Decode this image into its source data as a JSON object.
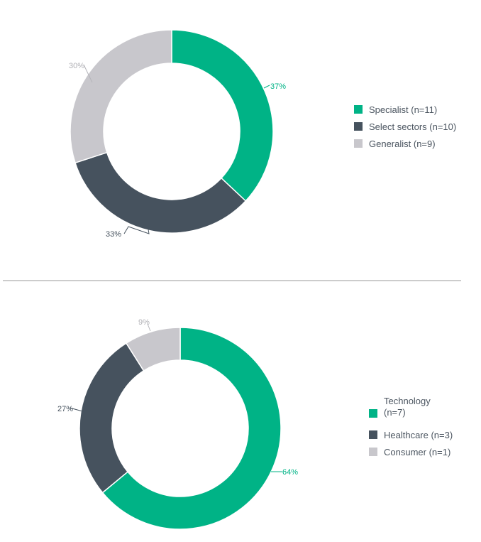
{
  "colors": {
    "specialist": "#00b386",
    "select": "#46525e",
    "generalist": "#c8c7cc",
    "divider": "#9a9a9a"
  },
  "chart_data": [
    {
      "type": "pie",
      "title": "",
      "labels": [
        "Specialist (n=11)",
        "Select sectors (n=10)",
        "Generalist (n=9)"
      ],
      "values": [
        37,
        33,
        30
      ],
      "value_labels": [
        "37%",
        "33%",
        "30%"
      ],
      "counts": [
        11,
        10,
        9
      ],
      "colors": [
        "#00b386",
        "#46525e",
        "#c8c7cc"
      ],
      "donut": true,
      "legend_position": "right"
    },
    {
      "type": "pie",
      "title": "",
      "labels": [
        "Technology (n=7)",
        "Healthcare (n=3)",
        "Consumer (n=1)"
      ],
      "legend_lines": [
        [
          "Technology",
          "(n=7)"
        ],
        [
          "Healthcare (n=3)"
        ],
        [
          "Consumer (n=1)"
        ]
      ],
      "values": [
        64,
        27,
        9
      ],
      "value_labels": [
        "64%",
        "27%",
        "9%"
      ],
      "counts": [
        7,
        3,
        1
      ],
      "colors": [
        "#00b386",
        "#46525e",
        "#c8c7cc"
      ],
      "donut": true,
      "legend_position": "right"
    }
  ]
}
